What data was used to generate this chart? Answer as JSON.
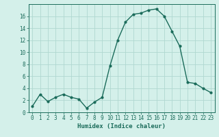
{
  "x": [
    0,
    1,
    2,
    3,
    4,
    5,
    6,
    7,
    8,
    9,
    10,
    11,
    12,
    13,
    14,
    15,
    16,
    17,
    18,
    19,
    20,
    21,
    22,
    23
  ],
  "y": [
    1,
    3,
    1.8,
    2.5,
    3,
    2.5,
    2.2,
    0.7,
    1.7,
    2.5,
    7.7,
    12,
    15,
    16.3,
    16.5,
    17,
    17.2,
    16,
    13.5,
    11,
    5,
    4.8,
    4,
    3.3
  ],
  "line_color": "#1a6b5a",
  "marker": "o",
  "marker_size": 2,
  "linewidth": 1.0,
  "bg_color": "#d4f0ea",
  "grid_color": "#b0d8d0",
  "xlabel": "Humidex (Indice chaleur)",
  "ylabel": "",
  "xlim": [
    -0.5,
    23.5
  ],
  "ylim": [
    0,
    18
  ],
  "yticks": [
    0,
    2,
    4,
    6,
    8,
    10,
    12,
    14,
    16
  ],
  "xticks": [
    0,
    1,
    2,
    3,
    4,
    5,
    6,
    7,
    8,
    9,
    10,
    11,
    12,
    13,
    14,
    15,
    16,
    17,
    18,
    19,
    20,
    21,
    22,
    23
  ],
  "tick_fontsize": 5.5,
  "xlabel_fontsize": 6.5,
  "axis_color": "#1a6b5a"
}
